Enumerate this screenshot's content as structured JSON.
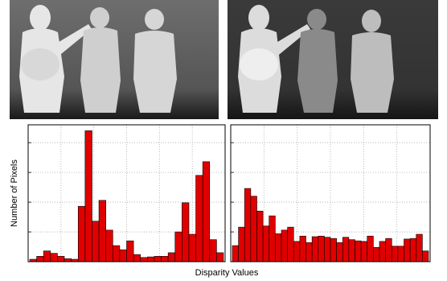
{
  "xlabel": "Disparity Values",
  "ylabel": "Number of Pixels",
  "chart_data": [
    {
      "type": "bar",
      "color": "#e00000",
      "grid": true,
      "values": [
        4,
        9,
        18,
        14,
        9,
        5,
        4,
        93,
        220,
        68,
        103,
        53,
        27,
        20,
        35,
        12,
        7,
        8,
        9,
        9,
        15,
        50,
        99,
        46,
        145,
        168,
        37,
        15
      ],
      "ylim": [
        0,
        230
      ],
      "yticks": [
        0,
        50,
        100,
        150,
        200
      ],
      "xlim": [
        0,
        6
      ],
      "xticks": [
        1,
        2,
        3,
        4,
        5
      ]
    },
    {
      "type": "bar",
      "color": "#e00000",
      "grid": true,
      "values": [
        27,
        58,
        123,
        110,
        85,
        60,
        77,
        47,
        53,
        58,
        34,
        43,
        32,
        42,
        43,
        41,
        39,
        32,
        41,
        37,
        35,
        34,
        43,
        24,
        34,
        39,
        26,
        26,
        38,
        39,
        46,
        18
      ],
      "ylim": [
        0,
        230
      ],
      "yticks": [
        0,
        50,
        100,
        150,
        200
      ],
      "xlim": [
        0,
        6
      ],
      "xticks": [
        1,
        2,
        3,
        4,
        5
      ]
    }
  ]
}
